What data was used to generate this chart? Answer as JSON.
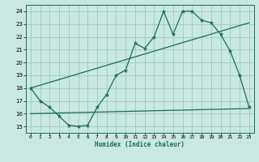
{
  "xlabel": "Humidex (Indice chaleur)",
  "ylabel": "",
  "bg_color": "#c8e8e0",
  "grid_color": "#a0c8c0",
  "line_color": "#1a6b5a",
  "xlim": [
    -0.5,
    23.5
  ],
  "ylim": [
    14.5,
    24.5
  ],
  "xticks": [
    0,
    1,
    2,
    3,
    4,
    5,
    6,
    7,
    8,
    9,
    10,
    11,
    12,
    13,
    14,
    15,
    16,
    17,
    18,
    19,
    20,
    21,
    22,
    23
  ],
  "yticks": [
    15,
    16,
    17,
    18,
    19,
    20,
    21,
    22,
    23,
    24
  ],
  "line1_x": [
    0,
    1,
    2,
    3,
    4,
    5,
    6,
    7,
    8,
    9,
    10,
    11,
    12,
    13,
    14,
    15,
    16,
    17,
    18,
    19,
    20,
    21,
    22,
    23
  ],
  "line1_y": [
    18,
    17,
    16.5,
    15.8,
    15.1,
    15.0,
    15.1,
    16.5,
    17.5,
    19.0,
    19.4,
    21.5,
    21.1,
    22.0,
    24.0,
    22.2,
    24.0,
    24.0,
    23.3,
    23.1,
    22.2,
    20.9,
    19.0,
    16.5
  ],
  "line2_x": [
    0,
    23
  ],
  "line2_y": [
    16.0,
    16.4
  ],
  "line3_x": [
    0,
    23
  ],
  "line3_y": [
    18.0,
    23.1
  ]
}
